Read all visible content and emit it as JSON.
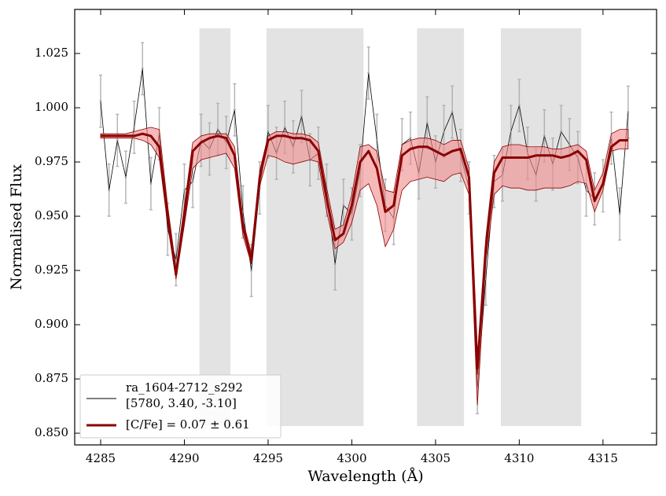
{
  "chart_data": {
    "type": "line",
    "xlabel": "Wavelength (Å)",
    "ylabel": "Normalised Flux",
    "xlim": [
      4283.45,
      4318.2
    ],
    "ylim": [
      0.8446,
      1.0453
    ],
    "xticks": [
      4285,
      4290,
      4295,
      4300,
      4305,
      4310,
      4315
    ],
    "yticks": [
      {
        "value": 0.85,
        "label": "0.850"
      },
      0.875,
      {
        "value": 0.9,
        "label": "0.900"
      },
      0.925,
      {
        "value": 0.95,
        "label": "0.950"
      },
      0.975,
      {
        "value": 1.0,
        "label": "1.000"
      },
      1.025
    ],
    "spans": [
      [
        4290.9,
        4292.75
      ],
      [
        4294.9,
        4300.7
      ],
      [
        4303.9,
        4306.7
      ],
      [
        4308.9,
        4313.7
      ]
    ],
    "span_ylim": [
      0.8533,
      1.0366
    ],
    "span_color": "#e3e3e3",
    "legend": "lower left",
    "x": [
      4285,
      4285.5,
      4286,
      4286.5,
      4287,
      4287.5,
      4288,
      4288.5,
      4289,
      4289.5,
      4290,
      4290.5,
      4291,
      4291.5,
      4292,
      4292.5,
      4293,
      4293.5,
      4294,
      4294.5,
      4295,
      4295.5,
      4296,
      4296.5,
      4297,
      4297.5,
      4298,
      4298.5,
      4299,
      4299.5,
      4300,
      4300.5,
      4301,
      4301.5,
      4302,
      4302.5,
      4303,
      4303.5,
      4304,
      4304.5,
      4305,
      4305.5,
      4306,
      4306.5,
      4307,
      4307.5,
      4308,
      4308.5,
      4309,
      4309.5,
      4310,
      4310.5,
      4311,
      4311.5,
      4312,
      4312.5,
      4313,
      4313.5,
      4314,
      4314.5,
      4315,
      4315.5,
      4316,
      4316.5
    ],
    "series": [
      {
        "name": [
          "ra_1604-2712_s292",
          "[5780, 3.40, -3.10]"
        ],
        "color": "#000000",
        "error_color": "#a9a9a9",
        "error": 0.012,
        "values": [
          1.003,
          0.962,
          0.985,
          0.968,
          0.991,
          1.018,
          0.965,
          0.988,
          0.944,
          0.93,
          0.962,
          0.966,
          0.985,
          0.981,
          0.99,
          0.984,
          0.999,
          0.952,
          0.925,
          0.963,
          0.989,
          0.979,
          0.991,
          0.982,
          0.996,
          0.976,
          0.979,
          0.962,
          0.928,
          0.955,
          0.951,
          0.971,
          1.016,
          0.985,
          0.955,
          0.949,
          0.983,
          0.986,
          0.97,
          0.993,
          0.975,
          0.989,
          0.998,
          0.978,
          0.963,
          0.871,
          0.921,
          0.966,
          0.969,
          0.989,
          1.001,
          0.979,
          0.969,
          0.987,
          0.974,
          0.989,
          0.983,
          0.977,
          0.962,
          0.958,
          0.964,
          0.986,
          0.951,
          0.998
        ]
      },
      {
        "name": "[C/Fe] = 0.07 ± 0.61",
        "color": "#8b0000",
        "band_color": "#f08a8a",
        "values": [
          0.987,
          0.987,
          0.987,
          0.987,
          0.987,
          0.988,
          0.987,
          0.982,
          0.95,
          0.923,
          0.95,
          0.98,
          0.984,
          0.986,
          0.987,
          0.986,
          0.978,
          0.945,
          0.93,
          0.968,
          0.985,
          0.987,
          0.987,
          0.986,
          0.986,
          0.985,
          0.98,
          0.958,
          0.939,
          0.942,
          0.955,
          0.975,
          0.98,
          0.972,
          0.952,
          0.955,
          0.978,
          0.981,
          0.982,
          0.982,
          0.98,
          0.978,
          0.98,
          0.981,
          0.968,
          0.88,
          0.935,
          0.97,
          0.977,
          0.977,
          0.977,
          0.977,
          0.978,
          0.978,
          0.978,
          0.977,
          0.978,
          0.98,
          0.976,
          0.957,
          0.965,
          0.982,
          0.985,
          0.985
        ],
        "lower": [
          0.986,
          0.986,
          0.986,
          0.986,
          0.986,
          0.985,
          0.983,
          0.977,
          0.946,
          0.921,
          0.946,
          0.972,
          0.976,
          0.977,
          0.978,
          0.979,
          0.972,
          0.941,
          0.928,
          0.964,
          0.978,
          0.977,
          0.975,
          0.974,
          0.975,
          0.976,
          0.975,
          0.952,
          0.935,
          0.938,
          0.947,
          0.962,
          0.965,
          0.955,
          0.936,
          0.944,
          0.962,
          0.966,
          0.967,
          0.968,
          0.967,
          0.966,
          0.969,
          0.97,
          0.96,
          0.863,
          0.929,
          0.96,
          0.964,
          0.963,
          0.963,
          0.962,
          0.962,
          0.963,
          0.963,
          0.963,
          0.964,
          0.966,
          0.965,
          0.952,
          0.962,
          0.98,
          0.981,
          0.981
        ],
        "upper": [
          0.988,
          0.988,
          0.988,
          0.988,
          0.989,
          0.99,
          0.991,
          0.99,
          0.955,
          0.926,
          0.955,
          0.984,
          0.987,
          0.988,
          0.988,
          0.988,
          0.982,
          0.948,
          0.933,
          0.971,
          0.987,
          0.989,
          0.989,
          0.988,
          0.988,
          0.987,
          0.984,
          0.963,
          0.944,
          0.946,
          0.96,
          0.982,
          0.983,
          0.98,
          0.962,
          0.961,
          0.983,
          0.985,
          0.986,
          0.986,
          0.985,
          0.983,
          0.985,
          0.985,
          0.972,
          0.877,
          0.94,
          0.975,
          0.982,
          0.983,
          0.983,
          0.982,
          0.982,
          0.982,
          0.981,
          0.981,
          0.982,
          0.983,
          0.98,
          0.962,
          0.97,
          0.988,
          0.99,
          0.99
        ]
      }
    ]
  }
}
